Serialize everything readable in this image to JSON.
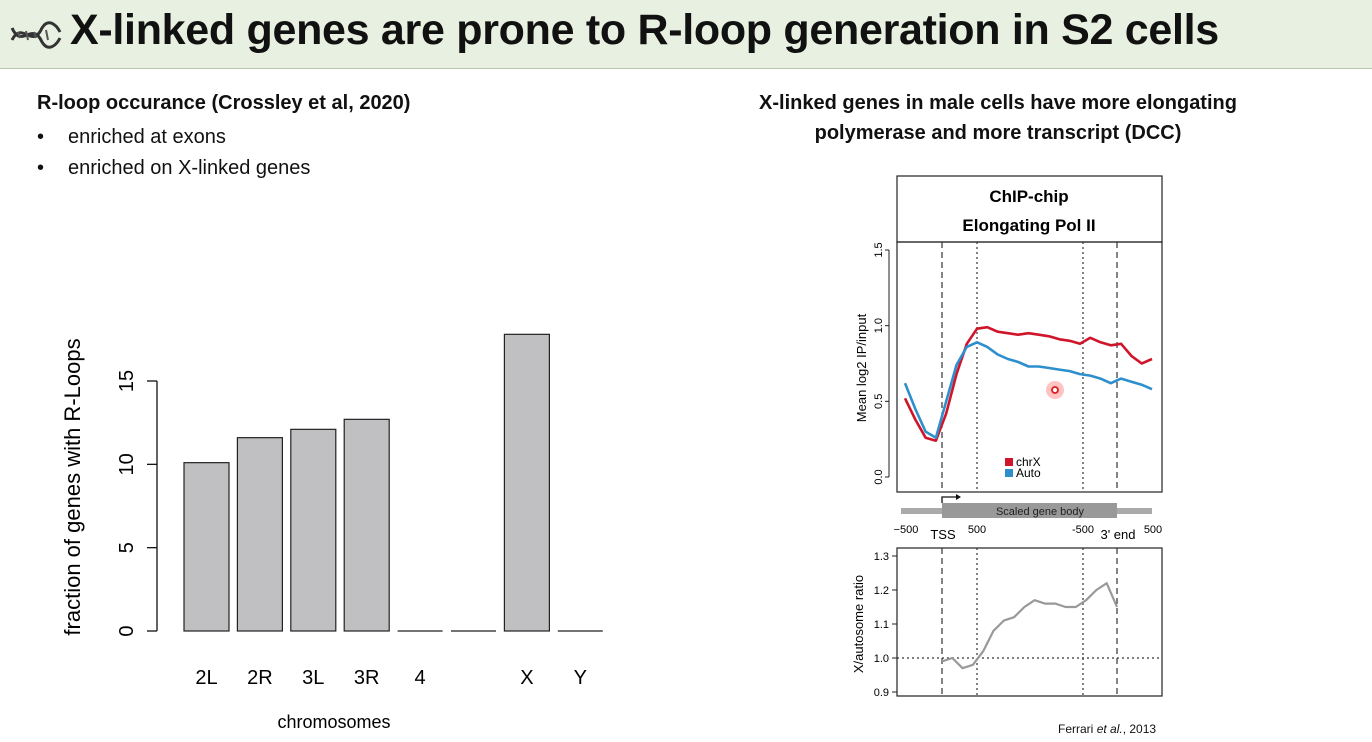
{
  "slide": {
    "title": "X-linked genes are prone to R-loop generation in S2 cells",
    "icon": "dna-icon"
  },
  "left": {
    "heading": "R-loop occurance (Crossley et al, 2020)",
    "bullets": [
      "enriched at exons",
      "enriched on X-linked genes"
    ]
  },
  "right": {
    "heading_line1": "X-linked genes in male cells have more elongating",
    "heading_line2": "polymerase and more transcript (DCC)",
    "citation_author": "Ferrari",
    "citation_etal": "et al.",
    "citation_year": ", 2013"
  },
  "chart_data": [
    {
      "type": "bar",
      "categories": [
        "2L",
        "2R",
        "3L",
        "3R",
        "4",
        "",
        "X",
        "Y"
      ],
      "values": [
        10.1,
        11.6,
        12.1,
        12.7,
        0,
        0,
        17.8,
        0
      ],
      "xlabel": "chromosomes",
      "ylabel": "fraction of genes with R-Loops",
      "yticks": [
        0,
        5,
        10,
        15
      ],
      "ylim": [
        0,
        18
      ],
      "bar_color": "#c0bfc1"
    },
    {
      "type": "line",
      "title": "ChIP-chip",
      "subtitle": "Elongating Pol II",
      "ylabel": "Mean log2 IP/input",
      "ylim": [
        0,
        1.5
      ],
      "yticks": [
        "0.0",
        "0.5",
        "1.0",
        "1.5"
      ],
      "xlabels": {
        "left_start": "−500",
        "tss": "TSS",
        "tss_end": "500",
        "end_start": "-500",
        "end": "3' end",
        "right_end": "500",
        "gene_body": "Scaled gene body"
      },
      "x": [
        0,
        1,
        2,
        3,
        4,
        5,
        6,
        7,
        8,
        9,
        10,
        11,
        12,
        13,
        14,
        15,
        16,
        17,
        18,
        19,
        20,
        21,
        22,
        23,
        24
      ],
      "series": [
        {
          "name": "chrX",
          "color": "#d0152b",
          "values": [
            0.52,
            0.38,
            0.26,
            0.24,
            0.42,
            0.68,
            0.88,
            0.98,
            0.99,
            0.96,
            0.95,
            0.94,
            0.95,
            0.94,
            0.93,
            0.91,
            0.9,
            0.88,
            0.92,
            0.89,
            0.87,
            0.88,
            0.8,
            0.75,
            0.78
          ]
        },
        {
          "name": "Auto",
          "color": "#2e8fcd",
          "values": [
            0.62,
            0.45,
            0.3,
            0.26,
            0.5,
            0.74,
            0.86,
            0.89,
            0.86,
            0.81,
            0.78,
            0.76,
            0.73,
            0.73,
            0.72,
            0.71,
            0.7,
            0.68,
            0.67,
            0.65,
            0.62,
            0.65,
            0.63,
            0.61,
            0.58
          ]
        }
      ]
    },
    {
      "type": "line",
      "ylabel": "X/autosome ratio",
      "ylim": [
        0.88,
        1.31
      ],
      "yticks": [
        "0.9",
        "1.0",
        "1.1",
        "1.2",
        "1.3"
      ],
      "reference_line": 1.0,
      "x": [
        0,
        1,
        2,
        3,
        4,
        5,
        6,
        7,
        8,
        9,
        10,
        11,
        12,
        13,
        14,
        15,
        16,
        17
      ],
      "series": [
        {
          "name": "",
          "color": "#999999",
          "values": [
            0.99,
            1.0,
            0.97,
            0.98,
            1.02,
            1.08,
            1.11,
            1.12,
            1.15,
            1.17,
            1.16,
            1.16,
            1.15,
            1.15,
            1.17,
            1.2,
            1.22,
            1.15
          ]
        }
      ]
    }
  ]
}
